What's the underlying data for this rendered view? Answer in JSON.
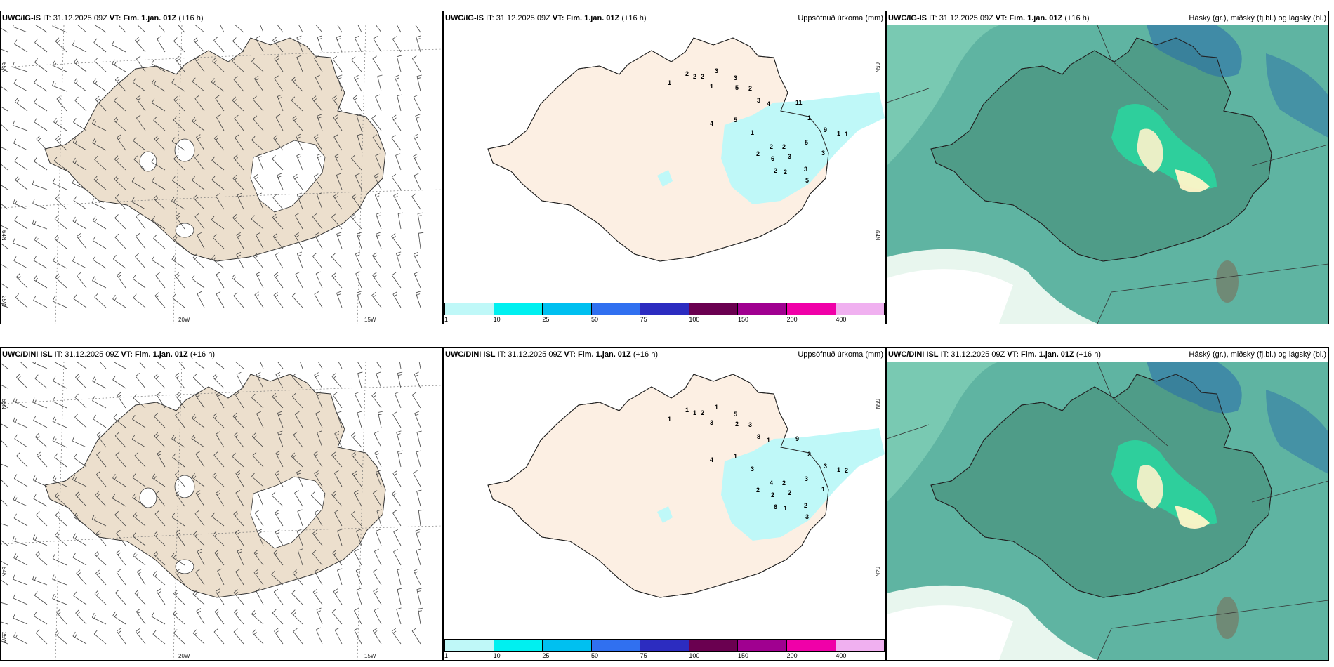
{
  "panels": [
    {
      "model": "UWC/IG-IS",
      "it_label": "IT:",
      "it_value": "31.12.2025 09Z",
      "vt_label": "VT:",
      "vt_value": "Fim. 1.jan. 01Z",
      "lead": "(+16 h)",
      "kind": "wind",
      "lat_labels": [
        "65N",
        "64N",
        "25W"
      ],
      "lon_labels": [
        "20W",
        "15W"
      ]
    },
    {
      "model": "UWC/IG-IS",
      "it_label": "IT:",
      "it_value": "31.12.2025 09Z",
      "vt_label": "VT:",
      "vt_value": "Fim. 1.jan. 01Z",
      "lead": "(+16 h)",
      "kind": "precip",
      "field": "Uppsöfnuð úrkoma (mm)",
      "lat_labels": [
        "65N",
        "64N"
      ],
      "precip_values": [
        "1",
        "2",
        "2",
        "2",
        "3",
        "1",
        "3",
        "5",
        "2",
        "3",
        "4",
        "11",
        "1",
        "9",
        "1",
        "4",
        "5",
        "1",
        "2",
        "2",
        "6",
        "2",
        "2",
        "2",
        "3",
        "5",
        "3",
        "5",
        "3",
        "1"
      ]
    },
    {
      "model": "UWC/IG-IS",
      "it_label": "IT:",
      "it_value": "31.12.2025 09Z",
      "vt_label": "VT:",
      "vt_value": "Fim. 1.jan. 01Z",
      "lead": "(+16 h)",
      "kind": "cloud",
      "field": "Háský (gr.), miðský (fj.bl.) og lágský (bl.)"
    },
    {
      "model": "UWC/DINI ISL",
      "it_label": "IT:",
      "it_value": "31.12.2025 09Z",
      "vt_label": "VT:",
      "vt_value": "Fim. 1.jan. 01Z",
      "lead": "(+16 h)",
      "kind": "wind",
      "lat_labels": [
        "65N",
        "64N",
        "25W"
      ],
      "lon_labels": [
        "20W",
        "15W"
      ]
    },
    {
      "model": "UWC/DINI ISL",
      "it_label": "IT:",
      "it_value": "31.12.2025 09Z",
      "vt_label": "VT:",
      "vt_value": "Fim. 1.jan. 01Z",
      "lead": "(+16 h)",
      "kind": "precip",
      "field": "Uppsöfnuð úrkoma (mm)",
      "lat_labels": [
        "65N",
        "64N"
      ],
      "precip_values": [
        "1",
        "1",
        "1",
        "2",
        "1",
        "3",
        "5",
        "2",
        "3",
        "8",
        "1",
        "9",
        "2",
        "3",
        "2",
        "4",
        "1",
        "3",
        "2",
        "4",
        "2",
        "6",
        "2",
        "1",
        "2",
        "3",
        "2",
        "3",
        "1",
        "1"
      ]
    },
    {
      "model": "UWC/DINI ISL",
      "it_label": "IT:",
      "it_value": "31.12.2025 09Z",
      "vt_label": "VT:",
      "vt_value": "Fim. 1.jan. 01Z",
      "lead": "(+16 h)",
      "kind": "cloud",
      "field": "Háský (gr.), miðský (fj.bl.) og lágský (bl.)"
    }
  ],
  "colorbar": {
    "ticks": [
      "1",
      "10",
      "25",
      "50",
      "75",
      "100",
      "150",
      "200",
      "400"
    ],
    "colors": [
      "#bff8f8",
      "#00f0f0",
      "#00c0f0",
      "#3070f0",
      "#2c2cc0",
      "#6a0050",
      "#a00090",
      "#f000a8",
      "#f0b0f0"
    ]
  },
  "colors": {
    "land_wind": "#ecdfcd",
    "land_precip": "#fcefe3",
    "precip_light": "#bff8f8",
    "cloud_sea": "#5fb4a2",
    "cloud_land": "#4f9c88",
    "cloud_bright": "#28d8a0",
    "cloud_blue": "#2c70a8"
  }
}
